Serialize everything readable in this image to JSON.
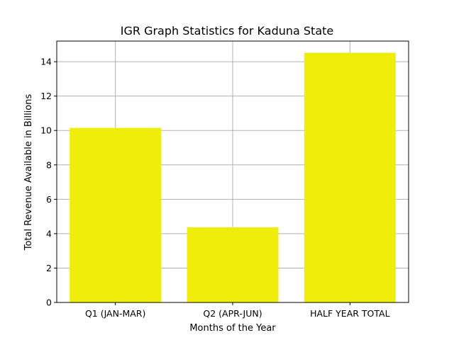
{
  "chart_data": {
    "type": "bar",
    "title": "IGR Graph Statistics for Kaduna State",
    "xlabel": "Months of the Year",
    "ylabel": "Total Revenue Available in Billions",
    "categories": [
      "Q1 (JAN-MAR)",
      "Q2 (APR-JUN)",
      "HALF YEAR TOTAL"
    ],
    "values": [
      10.15,
      4.37,
      14.52
    ],
    "ylim": [
      0,
      15.2
    ],
    "yticks": [
      0,
      2,
      4,
      6,
      8,
      10,
      12,
      14
    ],
    "grid": true,
    "bar_color": "#eeee0a",
    "grid_color": "#b0b0b0"
  }
}
